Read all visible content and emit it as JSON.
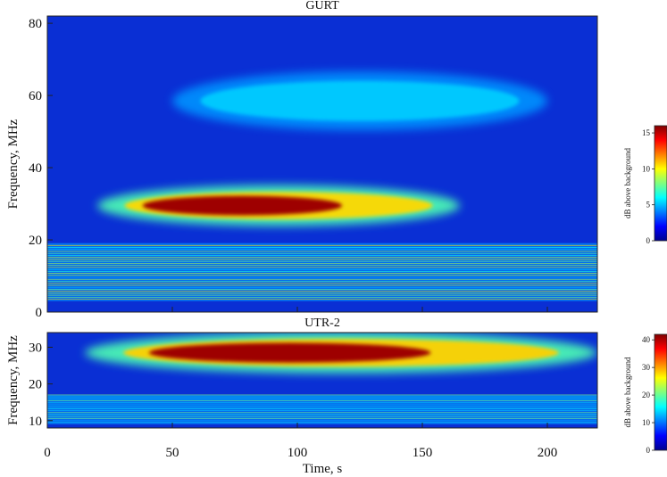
{
  "chart_data": [
    {
      "type": "heatmap",
      "title": "GURT",
      "xlabel": "",
      "ylabel": "Frequency, MHz",
      "xlim": [
        0,
        220
      ],
      "ylim": [
        0,
        82
      ],
      "xticks": [
        0,
        50,
        100,
        150,
        200
      ],
      "yticks": [
        0,
        20,
        40,
        60,
        80
      ],
      "colorbar": {
        "label": "dB above background",
        "range": [
          0,
          16
        ],
        "ticks": [
          0,
          5,
          10,
          15
        ]
      },
      "features": [
        {
          "kind": "burst",
          "t_start": 20,
          "t_end": 165,
          "f_low": 25,
          "f_high": 34,
          "level_db": 15
        },
        {
          "kind": "burst",
          "t_start": 50,
          "t_end": 200,
          "f_low": 52,
          "f_high": 65,
          "level_db": 6
        },
        {
          "kind": "rfi_band",
          "f_low": 3,
          "f_high": 19,
          "level_db": 5
        }
      ]
    },
    {
      "type": "heatmap",
      "title": "UTR-2",
      "xlabel": "Time, s",
      "ylabel": "Frequency, MHz",
      "xlim": [
        0,
        220
      ],
      "ylim": [
        8,
        34
      ],
      "xticks": [
        0,
        50,
        100,
        150,
        200
      ],
      "yticks": [
        10,
        20,
        30
      ],
      "colorbar": {
        "label": "dB above background",
        "range": [
          0,
          42
        ],
        "ticks": [
          0,
          10,
          20,
          30,
          40
        ]
      },
      "features": [
        {
          "kind": "burst",
          "t_start": 15,
          "t_end": 220,
          "f_low": 24,
          "f_high": 33,
          "level_db": 40
        },
        {
          "kind": "rfi_band",
          "f_low": 9,
          "f_high": 17,
          "level_db": 8
        }
      ]
    }
  ]
}
